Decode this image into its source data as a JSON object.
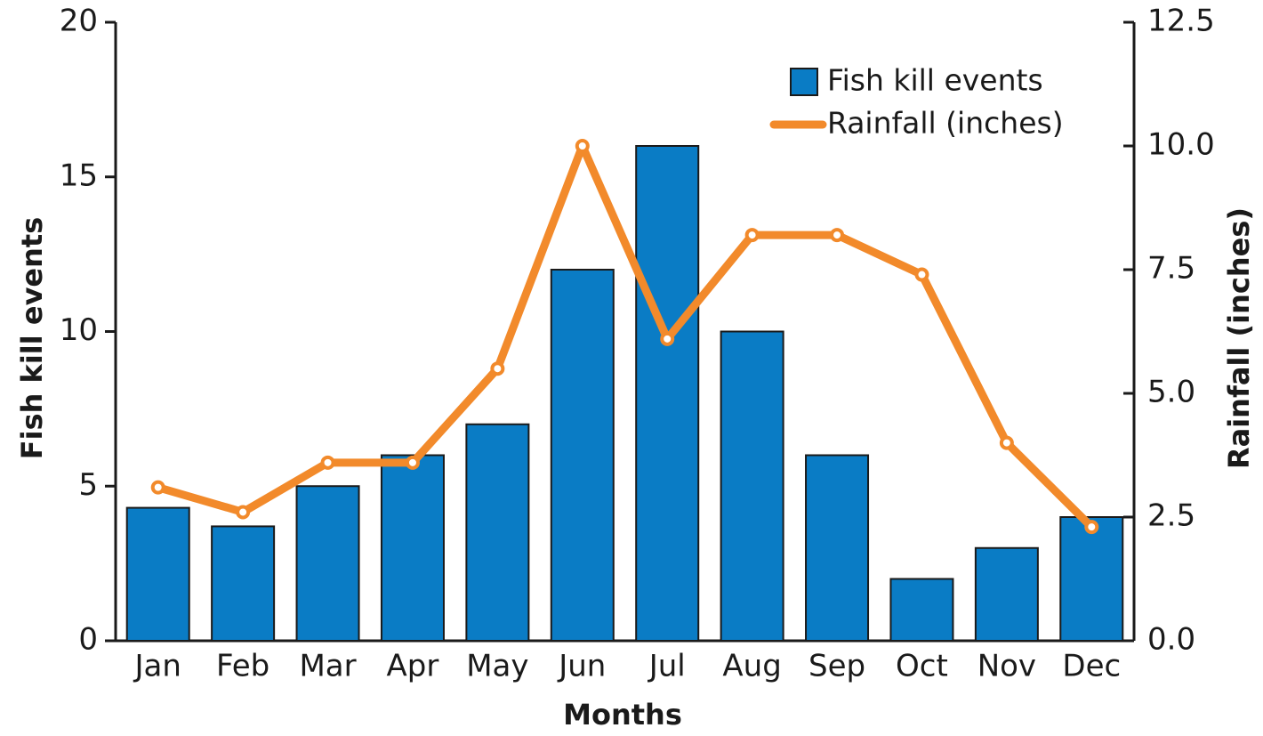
{
  "chart_data": {
    "type": "bar_line",
    "x_label": "Months",
    "y_label": "Fish kill events",
    "y2_label": "Rainfall (inches)",
    "categories": [
      "Jan",
      "Feb",
      "Mar",
      "Apr",
      "May",
      "Jun",
      "Jul",
      "Aug",
      "Sep",
      "Oct",
      "Nov",
      "Dec"
    ],
    "series": [
      {
        "name": "Fish kill events",
        "type": "bar",
        "color": "#0a7cc5",
        "values": [
          4.3,
          3.7,
          5,
          6,
          7,
          12,
          16,
          10,
          6,
          2,
          3,
          4
        ]
      },
      {
        "name": "Rainfall (inches)",
        "type": "line",
        "axis": "y2",
        "color": "#f28a2b",
        "values": [
          3.1,
          2.6,
          3.6,
          3.6,
          5.5,
          10.0,
          6.1,
          8.2,
          8.2,
          7.4,
          4.0,
          2.3
        ]
      }
    ],
    "ylim": [
      0,
      20
    ],
    "yticks": [
      0,
      5,
      10,
      15,
      20
    ],
    "y2lim": [
      0,
      12.5
    ],
    "y2ticks": [
      {
        "value": 0,
        "label": "0.0"
      },
      2.5,
      {
        "value": 5,
        "label": "5.0"
      },
      7.5,
      {
        "value": 10,
        "label": "10.0"
      },
      12.5
    ],
    "legend": "upper right"
  }
}
